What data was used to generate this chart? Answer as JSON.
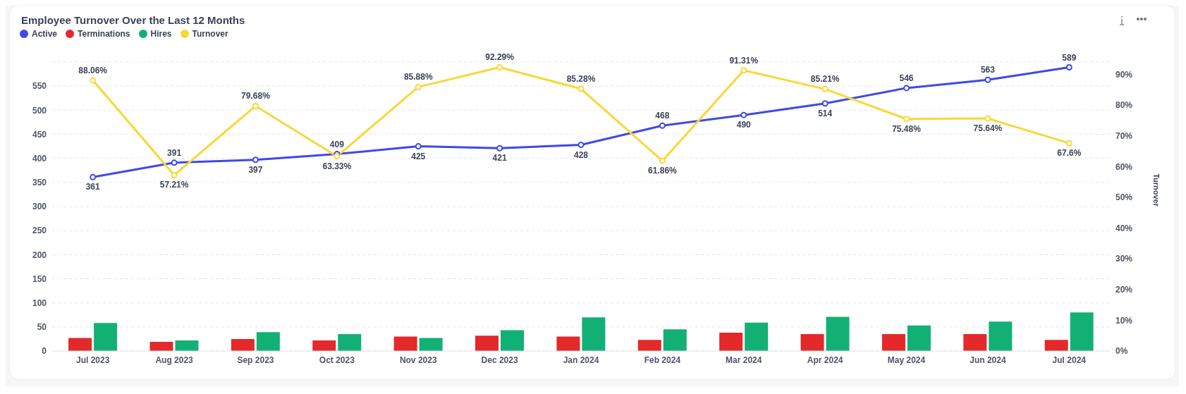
{
  "chart_data": {
    "type": "bar",
    "title": "Employee Turnover Over the Last 12 Months",
    "categories": [
      "Jul 2023",
      "Aug 2023",
      "Sep 2023",
      "Oct 2023",
      "Nov 2023",
      "Dec 2023",
      "Jan 2024",
      "Feb 2024",
      "Mar 2024",
      "Apr 2024",
      "May 2024",
      "Jun 2024",
      "Jul 2024"
    ],
    "series": [
      {
        "name": "Active",
        "type": "line",
        "color": "#3d4ae8",
        "marker": "circle",
        "values": [
          361,
          391,
          397,
          409,
          425,
          421,
          428,
          468,
          490,
          514,
          546,
          563,
          589
        ],
        "value_labels": [
          "361",
          "391",
          "397",
          "409",
          "425",
          "421",
          "428",
          "468",
          "490",
          "514",
          "546",
          "563",
          "589"
        ]
      },
      {
        "name": "Terminations",
        "color": "#e3292a",
        "values": [
          27,
          19,
          25,
          22,
          30,
          32,
          30,
          23,
          38,
          35,
          35,
          35,
          23
        ]
      },
      {
        "name": "Hires",
        "color": "#13b076",
        "values": [
          58,
          22,
          39,
          35,
          27,
          43,
          70,
          45,
          59,
          71,
          53,
          61,
          80
        ]
      },
      {
        "name": "Turnover",
        "type": "line",
        "axis": "y2",
        "color": "#fad737",
        "marker": "circle",
        "values": [
          88.06,
          57.21,
          79.68,
          63.33,
          85.88,
          92.29,
          85.28,
          61.86,
          91.31,
          85.21,
          75.48,
          75.64,
          67.6
        ],
        "value_labels": [
          "88.06%",
          "57.21%",
          "79.68%",
          "63.33%",
          "85.88%",
          "92.29%",
          "85.28%",
          "61.86%",
          "91.31%",
          "85.21%",
          "75.48%",
          "75.64%",
          "67.6%"
        ]
      }
    ],
    "ylim": [
      0,
      600
    ],
    "yticks": [
      0,
      50,
      100,
      150,
      200,
      250,
      300,
      350,
      400,
      450,
      500,
      550
    ],
    "y2lim": [
      0,
      94
    ],
    "y2ticks": [
      {
        "value": 0,
        "label": "0%"
      },
      {
        "value": 10,
        "label": "10%"
      },
      {
        "value": 20,
        "label": "20%"
      },
      {
        "value": 30,
        "label": "30%"
      },
      {
        "value": 40,
        "label": "40%"
      },
      {
        "value": 50,
        "label": "50%"
      },
      {
        "value": 60,
        "label": "60%"
      },
      {
        "value": 70,
        "label": "70%"
      },
      {
        "value": 80,
        "label": "80%"
      },
      {
        "value": 90,
        "label": "90%"
      }
    ],
    "y2label": "Turnover",
    "grid": "y",
    "legend": "top left"
  }
}
